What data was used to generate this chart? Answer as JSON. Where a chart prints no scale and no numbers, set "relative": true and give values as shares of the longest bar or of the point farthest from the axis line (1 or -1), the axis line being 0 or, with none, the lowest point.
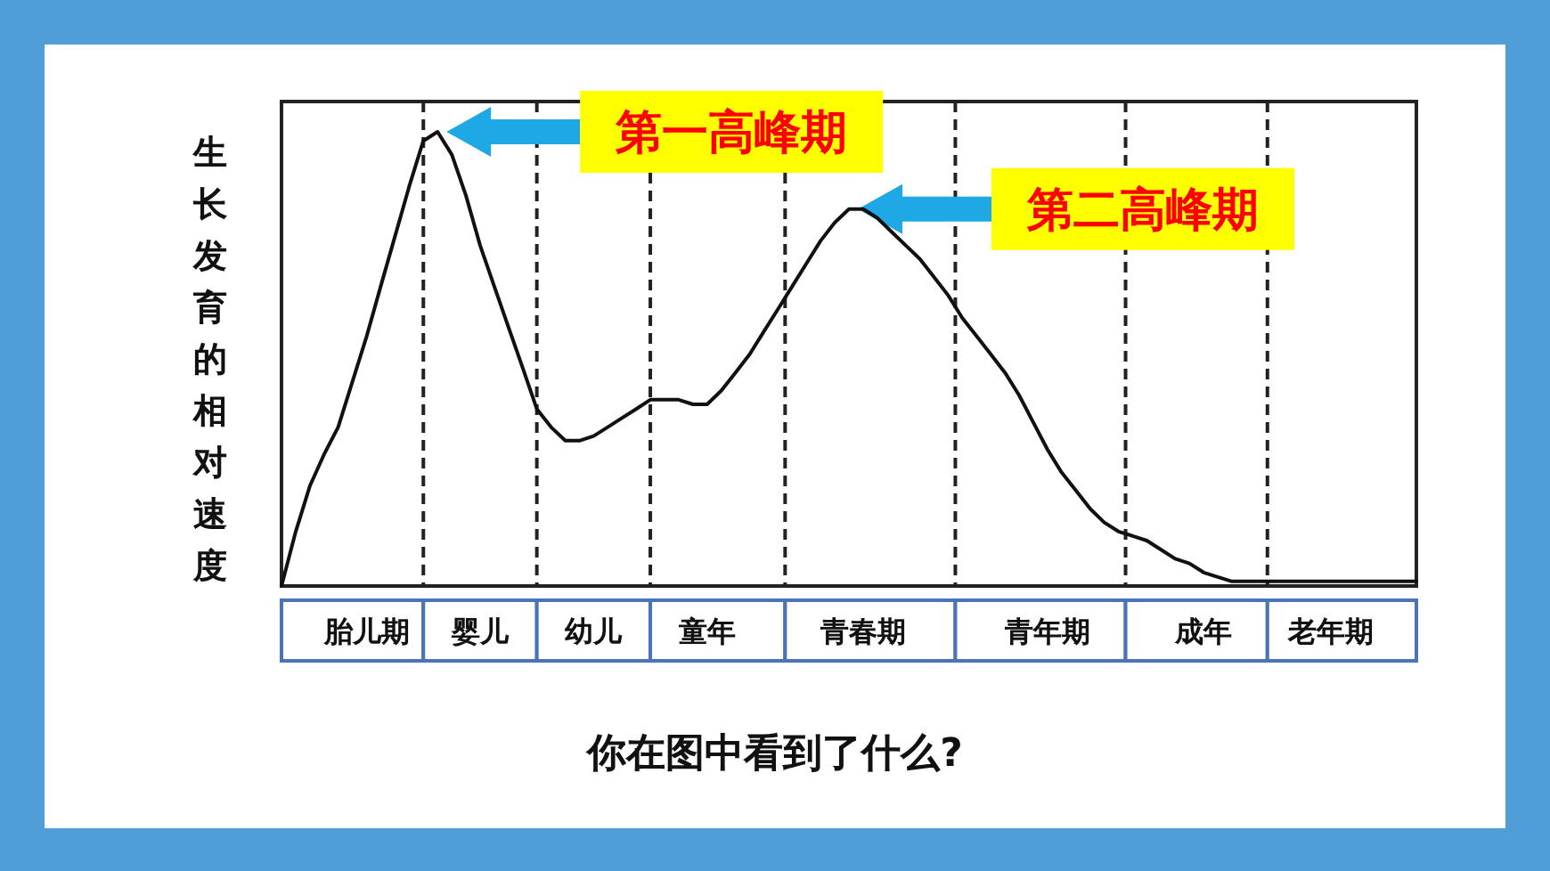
{
  "chart_data": {
    "type": "line",
    "relative": true,
    "ylabel": "生长发育的相对速度",
    "grid": "x",
    "categories": [
      null,
      null,
      null,
      null,
      null,
      null,
      "胎儿期",
      null,
      null,
      null,
      null,
      null,
      null,
      null,
      "婴儿",
      null,
      null,
      null,
      null,
      null,
      null,
      null,
      "幼儿",
      null,
      null,
      null,
      null,
      null,
      null,
      null,
      "童年",
      null,
      null,
      null,
      null,
      null,
      null,
      null,
      null,
      null,
      null,
      "青春期",
      null,
      null,
      null,
      null,
      null,
      null,
      null,
      null,
      null,
      null,
      null,
      null,
      "青年期",
      null,
      null,
      null,
      null,
      null,
      null,
      null,
      null,
      null,
      null,
      "成年",
      null,
      null,
      null,
      null,
      null,
      null,
      null,
      null,
      "老年期",
      null,
      null,
      null,
      null,
      null,
      null
    ],
    "series": [
      {
        "color": "#111111",
        "values": [
          0,
          0.12,
          0.22,
          0.29,
          0.35,
          0.45,
          0.55,
          0.66,
          0.77,
          0.88,
          0.98,
          1.0,
          0.95,
          0.86,
          0.75,
          0.66,
          0.57,
          0.48,
          0.39,
          0.35,
          0.32,
          0.32,
          0.33,
          0.35,
          0.37,
          0.39,
          0.41,
          0.41,
          0.41,
          0.4,
          0.4,
          0.43,
          0.47,
          0.51,
          0.56,
          0.61,
          0.66,
          0.71,
          0.76,
          0.8,
          0.83,
          0.83,
          0.81,
          0.78,
          0.75,
          0.72,
          0.68,
          0.64,
          0.59,
          0.55,
          0.51,
          0.47,
          0.42,
          0.36,
          0.3,
          0.25,
          0.21,
          0.17,
          0.14,
          0.12,
          0.11,
          0.1,
          0.08,
          0.06,
          0.05,
          0.03,
          0.02,
          0.01,
          0.01,
          0.01,
          0.01,
          0.01,
          0.01,
          0.01,
          0.01,
          0.01,
          0.01,
          0.01,
          0.01,
          0.01,
          0.01
        ]
      }
    ],
    "annotations": [
      "第一高峰期",
      "第二高峰期",
      "你在图中看到了什么?"
    ]
  }
}
